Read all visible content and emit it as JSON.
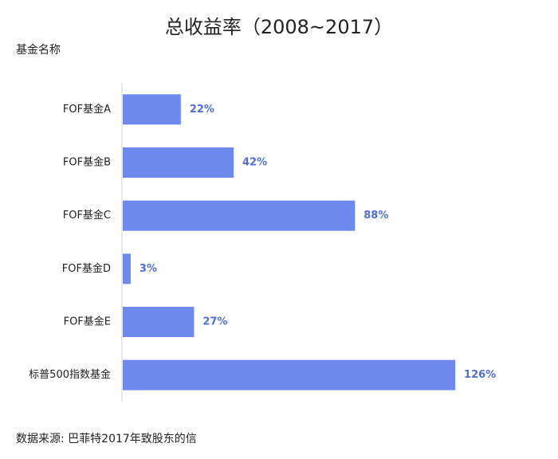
{
  "chart_data": {
    "type": "bar",
    "orientation": "horizontal",
    "title": "总收益率（2008~2017）",
    "ylabel": "基金名称",
    "xlabel": "",
    "categories": [
      "FOF基金A",
      "FOF基金B",
      "FOF基金C",
      "FOF基金D",
      "FOF基金E",
      "标普500指数基金"
    ],
    "values": [
      22,
      42,
      88,
      3,
      27,
      126
    ],
    "value_labels": [
      "22%",
      "42%",
      "88%",
      "3%",
      "27%",
      "126%"
    ],
    "unit": "%",
    "bar_color": "#6d88ef",
    "label_color": "#4f6fd8",
    "grid": false,
    "legend": "none"
  },
  "source_note": "数据来源: 巴菲特2017年致股东的信"
}
